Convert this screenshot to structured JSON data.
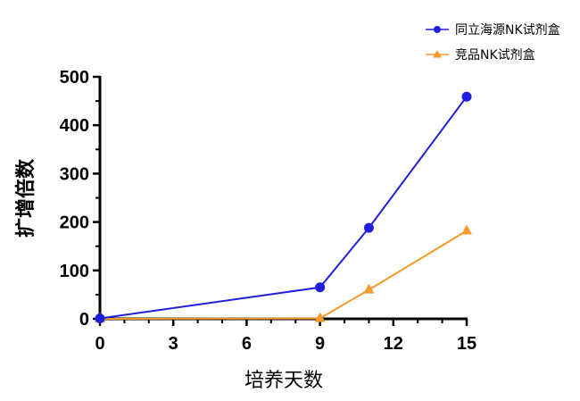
{
  "chart_data": {
    "type": "line",
    "title": "",
    "xlabel": "培养天数",
    "ylabel": "扩增倍数",
    "xlim": [
      0,
      15
    ],
    "ylim": [
      0,
      500
    ],
    "xticks": [
      "0",
      "3",
      "6",
      "9",
      "12",
      "15"
    ],
    "yticks": [
      "0",
      "100",
      "200",
      "300",
      "400",
      "500"
    ],
    "grid": false,
    "legend_position": "top-right",
    "series": [
      {
        "name": "同立海源NK试剂盒",
        "color": "#1f1fe0",
        "marker": "circle",
        "x": [
          0,
          9,
          11,
          15
        ],
        "y": [
          1,
          65,
          188,
          459
        ]
      },
      {
        "name": "竞品NK试剂盒",
        "color": "#f39a2b",
        "marker": "triangle",
        "x": [
          0,
          9,
          11,
          15
        ],
        "y": [
          0,
          1,
          60,
          182
        ]
      }
    ]
  }
}
